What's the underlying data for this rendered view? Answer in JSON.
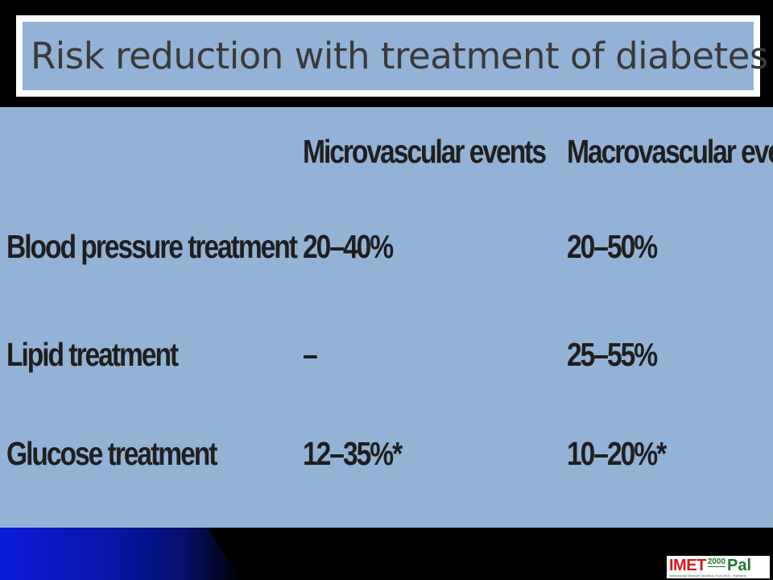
{
  "slide": {
    "title": "Risk reduction with treatment of diabetes",
    "table": {
      "headers": [
        "",
        "Microvascular events",
        "Macrovascular events"
      ],
      "rows": [
        {
          "label": "Blood pressure treatment",
          "micro": "20–40%",
          "macro": "20–50%"
        },
        {
          "label": "Lipid treatment",
          "micro": "–",
          "macro": "25–55%"
        },
        {
          "label": "Glucose treatment",
          "micro": "12–35%*",
          "macro": "10–20%*"
        }
      ]
    },
    "logo": {
      "imet": "IMET",
      "year": "2000",
      "pal": "Pal",
      "subtitle": "International Medical Education Trust 2000 - Palestine"
    },
    "colors": {
      "panel": "#93b3d6",
      "background": "#000000",
      "accent_blue": "#0a1adc"
    }
  }
}
